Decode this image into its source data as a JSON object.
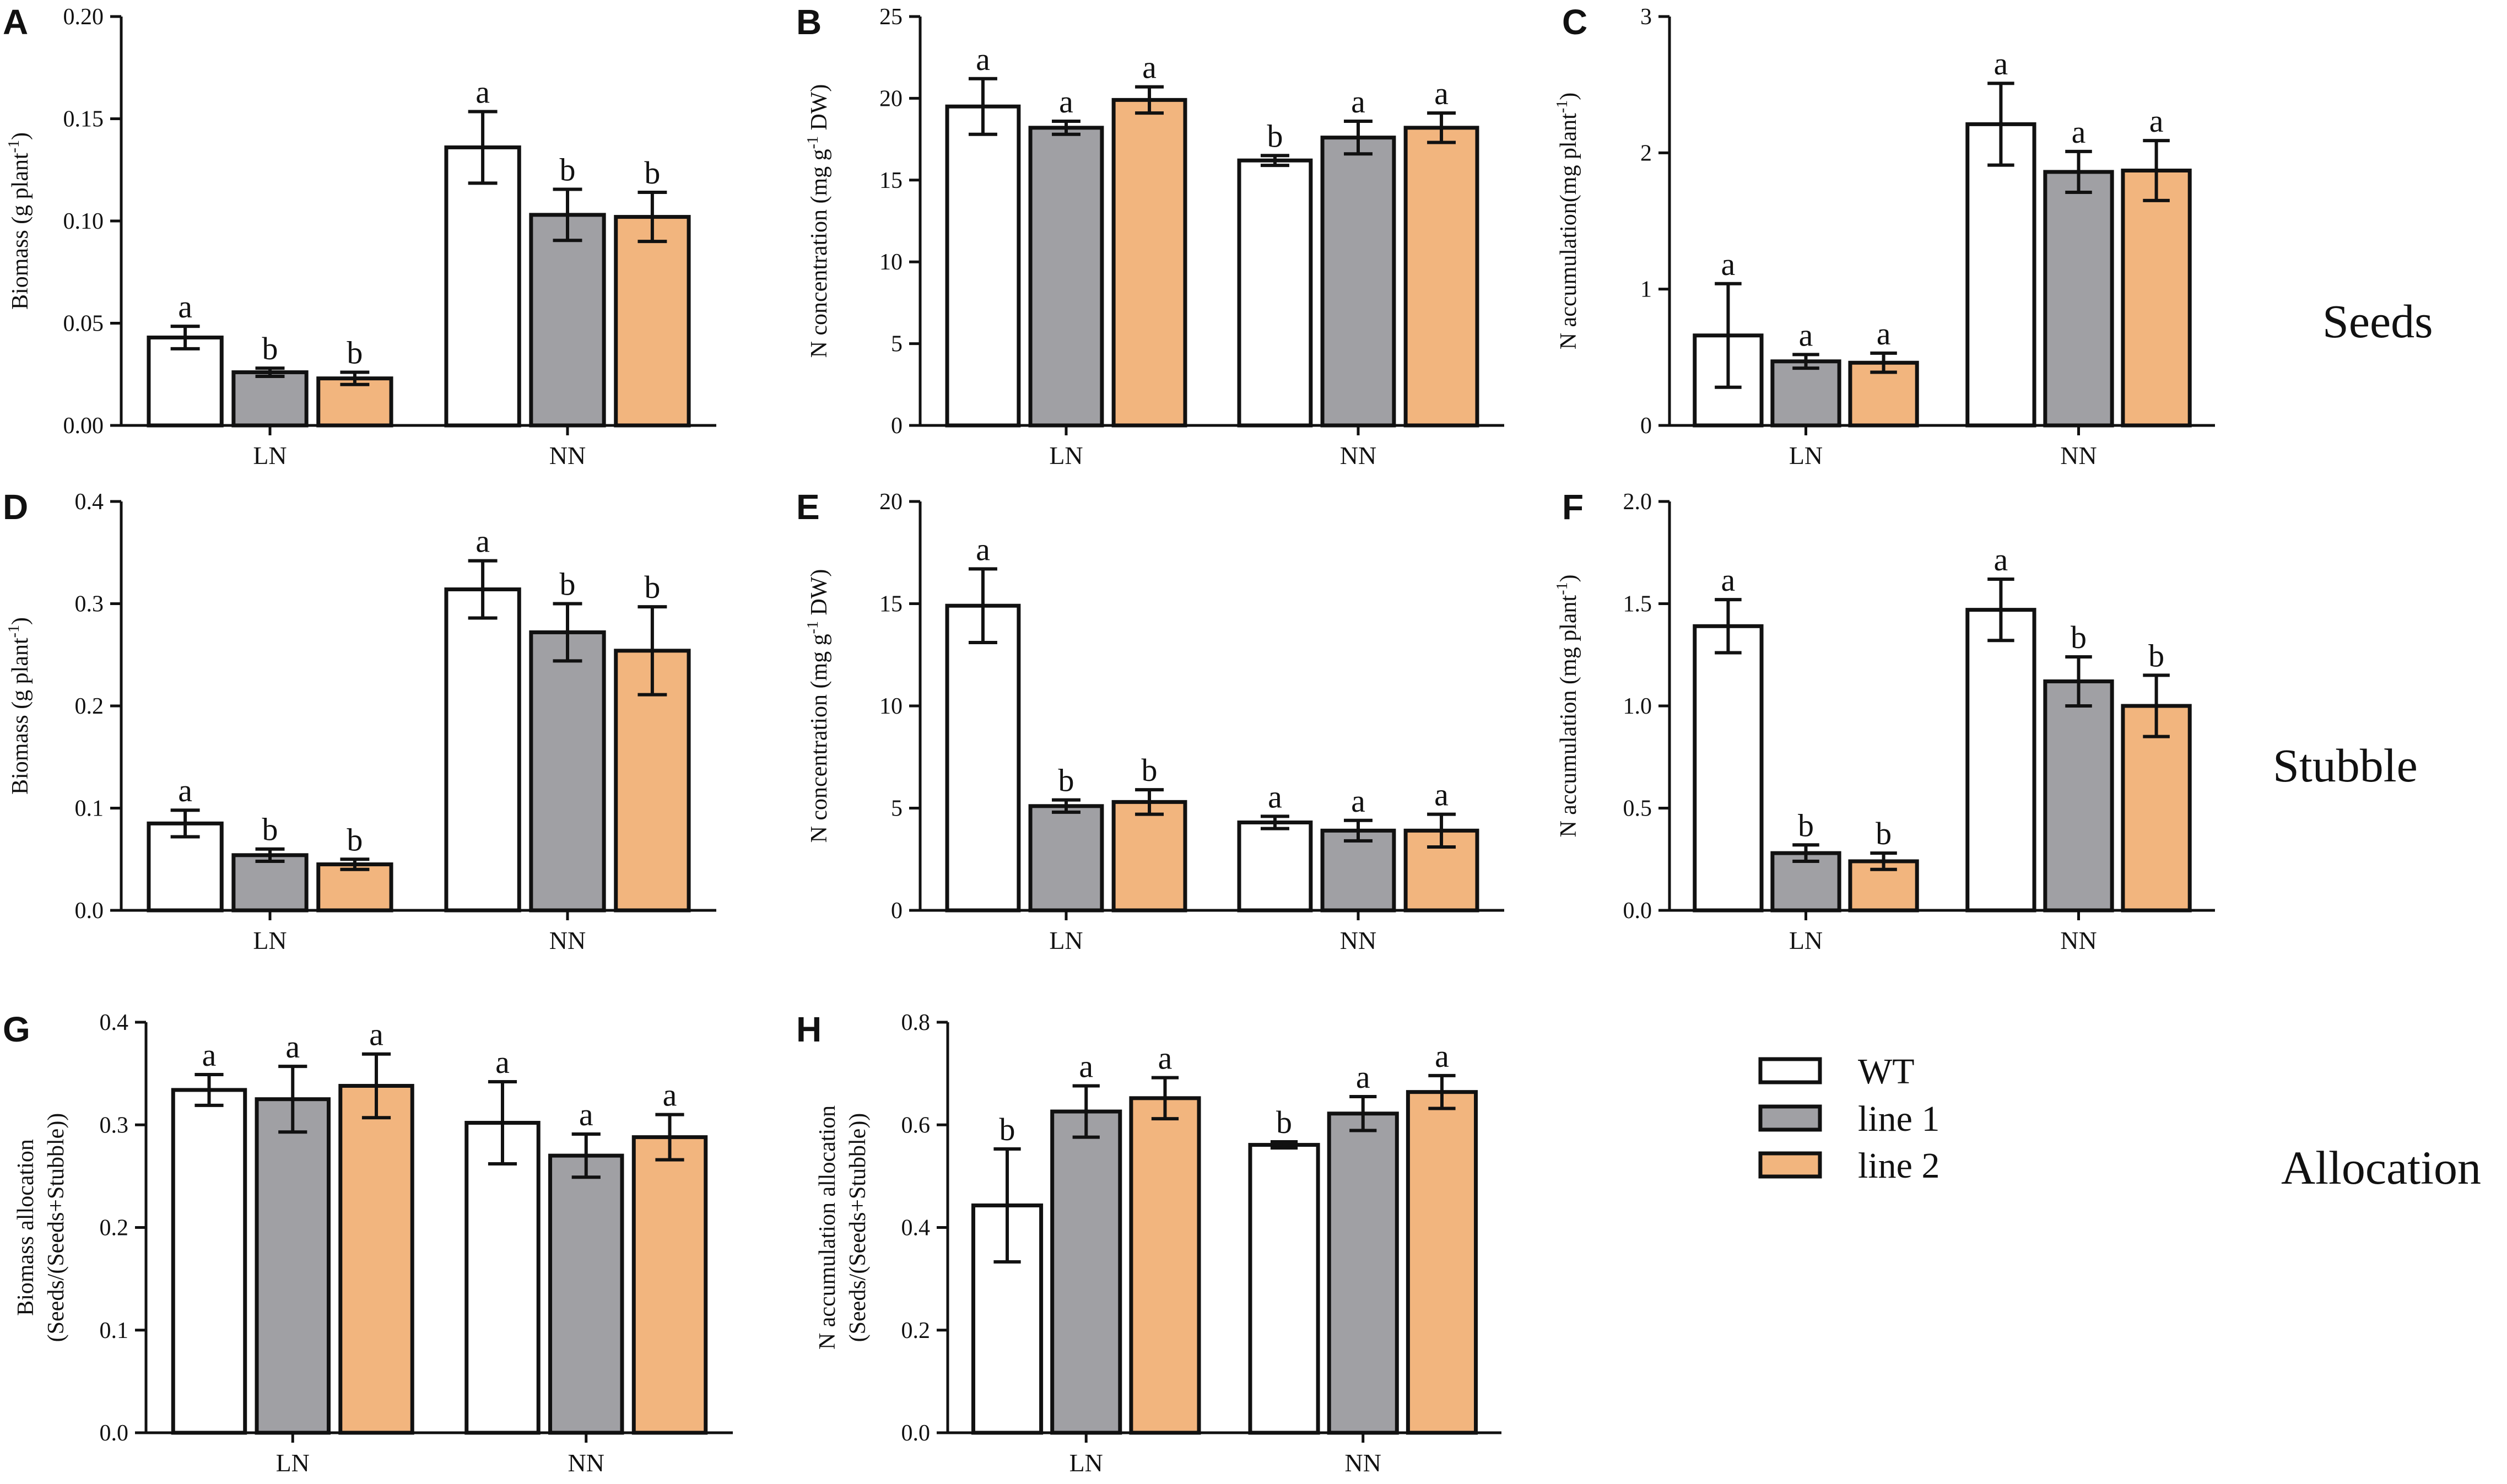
{
  "figure": {
    "row_labels": [
      "Seeds",
      "Stubble",
      "Allocation"
    ],
    "legend": {
      "entries": [
        {
          "name": "WT",
          "color": "#ffffff"
        },
        {
          "name": "line 1",
          "color": "#a0a0a4"
        },
        {
          "name": "line 2",
          "color": "#f2b57e"
        }
      ]
    }
  },
  "chart_data": [
    {
      "panel": "A",
      "type": "bar",
      "row": "Seeds",
      "categories": [
        "LN",
        "NN"
      ],
      "ylabel_main": "Biomass (g plant",
      "ylabel_sup": "-1",
      "ylabel_tail": ")",
      "ylabel_line2": "",
      "ylim": [
        0,
        0.2
      ],
      "yticks": [
        "0.00",
        "0.05",
        "0.10",
        "0.15",
        "0.20"
      ],
      "series": [
        {
          "name": "WT",
          "values": [
            0.043,
            0.136
          ],
          "errors": [
            0.0055,
            0.0175
          ],
          "sig": [
            "a",
            "a"
          ]
        },
        {
          "name": "line 1",
          "values": [
            0.026,
            0.103
          ],
          "errors": [
            0.002,
            0.0125
          ],
          "sig": [
            "b",
            "b"
          ]
        },
        {
          "name": "line 2",
          "values": [
            0.023,
            0.102
          ],
          "errors": [
            0.003,
            0.012
          ],
          "sig": [
            "b",
            "b"
          ]
        }
      ]
    },
    {
      "panel": "B",
      "type": "bar",
      "row": "Seeds",
      "categories": [
        "LN",
        "NN"
      ],
      "ylabel_main": "N concentration (mg g",
      "ylabel_sup": "-1",
      "ylabel_tail": " DW)",
      "ylabel_line2": "",
      "ylim": [
        0,
        25
      ],
      "yticks": [
        "0",
        "5",
        "10",
        "15",
        "20",
        "25"
      ],
      "series": [
        {
          "name": "WT",
          "values": [
            19.5,
            16.2
          ],
          "errors": [
            1.7,
            0.3
          ],
          "sig": [
            "a",
            "b"
          ]
        },
        {
          "name": "line 1",
          "values": [
            18.2,
            17.6
          ],
          "errors": [
            0.4,
            1.0
          ],
          "sig": [
            "a",
            "a"
          ]
        },
        {
          "name": "line 2",
          "values": [
            19.9,
            18.2
          ],
          "errors": [
            0.8,
            0.9
          ],
          "sig": [
            "a",
            "a"
          ]
        }
      ]
    },
    {
      "panel": "C",
      "type": "bar",
      "row": "Seeds",
      "categories": [
        "LN",
        "NN"
      ],
      "ylabel_main": "N accumulation(mg plant",
      "ylabel_sup": "-1",
      "ylabel_tail": ")",
      "ylabel_line2": "",
      "ylim": [
        0,
        3
      ],
      "yticks": [
        "0",
        "1",
        "2",
        "3"
      ],
      "series": [
        {
          "name": "WT",
          "values": [
            0.66,
            2.21
          ],
          "errors": [
            0.38,
            0.3
          ],
          "sig": [
            "a",
            "a"
          ]
        },
        {
          "name": "line 1",
          "values": [
            0.47,
            1.86
          ],
          "errors": [
            0.05,
            0.15
          ],
          "sig": [
            "a",
            "a"
          ]
        },
        {
          "name": "line 2",
          "values": [
            0.46,
            1.87
          ],
          "errors": [
            0.07,
            0.22
          ],
          "sig": [
            "a",
            "a"
          ]
        }
      ]
    },
    {
      "panel": "D",
      "type": "bar",
      "row": "Stubble",
      "categories": [
        "LN",
        "NN"
      ],
      "ylabel_main": "Biomass (g plant",
      "ylabel_sup": "-1",
      "ylabel_tail": ")",
      "ylabel_line2": "",
      "ylim": [
        0,
        0.4
      ],
      "yticks": [
        "0.0",
        "0.1",
        "0.2",
        "0.3",
        "0.4"
      ],
      "series": [
        {
          "name": "WT",
          "values": [
            0.085,
            0.314
          ],
          "errors": [
            0.013,
            0.028
          ],
          "sig": [
            "a",
            "a"
          ]
        },
        {
          "name": "line 1",
          "values": [
            0.054,
            0.272
          ],
          "errors": [
            0.006,
            0.028
          ],
          "sig": [
            "b",
            "b"
          ]
        },
        {
          "name": "line 2",
          "values": [
            0.045,
            0.254
          ],
          "errors": [
            0.005,
            0.043
          ],
          "sig": [
            "b",
            "b"
          ]
        }
      ]
    },
    {
      "panel": "E",
      "type": "bar",
      "row": "Stubble",
      "categories": [
        "LN",
        "NN"
      ],
      "ylabel_main": "N concentration (mg g",
      "ylabel_sup": "-1",
      "ylabel_tail": " DW)",
      "ylabel_line2": "",
      "ylim": [
        0,
        20
      ],
      "yticks": [
        "0",
        "5",
        "10",
        "15",
        "20"
      ],
      "series": [
        {
          "name": "WT",
          "values": [
            14.9,
            4.3
          ],
          "errors": [
            1.8,
            0.3
          ],
          "sig": [
            "a",
            "a"
          ]
        },
        {
          "name": "line 1",
          "values": [
            5.1,
            3.9
          ],
          "errors": [
            0.3,
            0.5
          ],
          "sig": [
            "b",
            "a"
          ]
        },
        {
          "name": "line 2",
          "values": [
            5.3,
            3.9
          ],
          "errors": [
            0.6,
            0.8
          ],
          "sig": [
            "b",
            "a"
          ]
        }
      ]
    },
    {
      "panel": "F",
      "type": "bar",
      "row": "Stubble",
      "categories": [
        "LN",
        "NN"
      ],
      "ylabel_main": "N accumulation (mg plant",
      "ylabel_sup": "-1",
      "ylabel_tail": ")",
      "ylabel_line2": "",
      "ylim": [
        0,
        2.0
      ],
      "yticks": [
        "0.0",
        "0.5",
        "1.0",
        "1.5",
        "2.0"
      ],
      "series": [
        {
          "name": "WT",
          "values": [
            1.39,
            1.47
          ],
          "errors": [
            0.13,
            0.15
          ],
          "sig": [
            "a",
            "a"
          ]
        },
        {
          "name": "line 1",
          "values": [
            0.28,
            1.12
          ],
          "errors": [
            0.04,
            0.12
          ],
          "sig": [
            "b",
            "b"
          ]
        },
        {
          "name": "line 2",
          "values": [
            0.24,
            1.0
          ],
          "errors": [
            0.04,
            0.15
          ],
          "sig": [
            "b",
            "b"
          ]
        }
      ]
    },
    {
      "panel": "G",
      "type": "bar",
      "row": "Allocation",
      "categories": [
        "LN",
        "NN"
      ],
      "ylabel_main": "Biomass allocation",
      "ylabel_sup": "",
      "ylabel_tail": "",
      "ylabel_line2": "(Seeds/(Seeds+Stubble))",
      "ylim": [
        0,
        0.4
      ],
      "yticks": [
        "0.0",
        "0.1",
        "0.2",
        "0.3",
        "0.4"
      ],
      "series": [
        {
          "name": "WT",
          "values": [
            0.334,
            0.302
          ],
          "errors": [
            0.015,
            0.04
          ],
          "sig": [
            "a",
            "a"
          ]
        },
        {
          "name": "line 1",
          "values": [
            0.325,
            0.27
          ],
          "errors": [
            0.032,
            0.021
          ],
          "sig": [
            "a",
            "a"
          ]
        },
        {
          "name": "line 2",
          "values": [
            0.338,
            0.288
          ],
          "errors": [
            0.031,
            0.022
          ],
          "sig": [
            "a",
            "a"
          ]
        }
      ]
    },
    {
      "panel": "H",
      "type": "bar",
      "row": "Allocation",
      "categories": [
        "LN",
        "NN"
      ],
      "ylabel_main": "N accumulation allocation",
      "ylabel_sup": "",
      "ylabel_tail": "",
      "ylabel_line2": "(Seeds/(Seeds+Stubble))",
      "ylim": [
        0,
        0.8
      ],
      "yticks": [
        "0.0",
        "0.2",
        "0.4",
        "0.6",
        "0.8"
      ],
      "series": [
        {
          "name": "WT",
          "values": [
            0.443,
            0.561
          ],
          "errors": [
            0.11,
            0.006
          ],
          "sig": [
            "b",
            "b"
          ]
        },
        {
          "name": "line 1",
          "values": [
            0.626,
            0.622
          ],
          "errors": [
            0.05,
            0.033
          ],
          "sig": [
            "a",
            "a"
          ]
        },
        {
          "name": "line 2",
          "values": [
            0.652,
            0.664
          ],
          "errors": [
            0.04,
            0.032
          ],
          "sig": [
            "a",
            "a"
          ]
        }
      ]
    }
  ]
}
